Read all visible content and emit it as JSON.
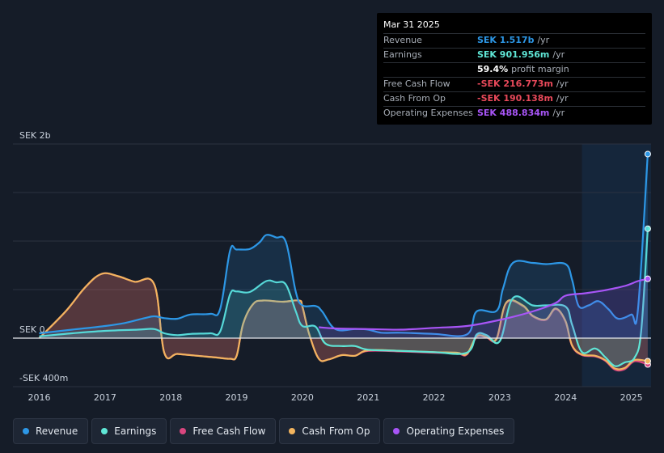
{
  "tooltip": {
    "date": "Mar 31 2025",
    "rows": [
      {
        "label": "Revenue",
        "value": "SEK 1.517b",
        "unit": "/yr",
        "color": "#2d97e6"
      },
      {
        "label": "Earnings",
        "value": "SEK 901.956m",
        "unit": "/yr",
        "color": "#5fe6d6"
      },
      {
        "label": "",
        "value": "59.4%",
        "unit": "profit margin",
        "color": "#ffffff"
      },
      {
        "label": "Free Cash Flow",
        "value": "-SEK 216.773m",
        "unit": "/yr",
        "color": "#e8495a"
      },
      {
        "label": "Cash From Op",
        "value": "-SEK 190.138m",
        "unit": "/yr",
        "color": "#e8495a"
      },
      {
        "label": "Operating Expenses",
        "value": "SEK 488.834m",
        "unit": "/yr",
        "color": "#a855f7"
      }
    ]
  },
  "legend": [
    {
      "label": "Revenue",
      "color": "#2d97e6"
    },
    {
      "label": "Earnings",
      "color": "#5fe6d6"
    },
    {
      "label": "Free Cash Flow",
      "color": "#d9467f"
    },
    {
      "label": "Cash From Op",
      "color": "#f2b45e"
    },
    {
      "label": "Operating Expenses",
      "color": "#a855f7"
    }
  ],
  "chart_data": {
    "type": "area",
    "ylim": [
      -400,
      1600
    ],
    "y_tick_labels": [
      {
        "value": 1600,
        "label": "SEK 2b"
      },
      {
        "value": 0,
        "label": "SEK 0"
      },
      {
        "value": -400,
        "label": "-SEK 400m"
      }
    ],
    "x_ticks": [
      "2016",
      "2017",
      "2018",
      "2019",
      "2020",
      "2021",
      "2022",
      "2023",
      "2024",
      "2025"
    ],
    "xlim": [
      2015.6,
      2025.3
    ],
    "highlight_from": 2024.25,
    "series": [
      {
        "name": "Revenue",
        "color": "#2d97e6",
        "points": [
          [
            2016,
            40
          ],
          [
            2016.5,
            70
          ],
          [
            2017,
            100
          ],
          [
            2017.3,
            125
          ],
          [
            2017.6,
            165
          ],
          [
            2017.75,
            180
          ],
          [
            2017.9,
            165
          ],
          [
            2018.1,
            160
          ],
          [
            2018.3,
            195
          ],
          [
            2018.6,
            200
          ],
          [
            2018.75,
            240
          ],
          [
            2018.9,
            720
          ],
          [
            2019.0,
            730
          ],
          [
            2019.2,
            735
          ],
          [
            2019.35,
            790
          ],
          [
            2019.45,
            850
          ],
          [
            2019.6,
            830
          ],
          [
            2019.75,
            790
          ],
          [
            2019.9,
            380
          ],
          [
            2020.0,
            270
          ],
          [
            2020.2,
            265
          ],
          [
            2020.3,
            220
          ],
          [
            2020.5,
            75
          ],
          [
            2020.8,
            75
          ],
          [
            2021.0,
            70
          ],
          [
            2021.2,
            45
          ],
          [
            2021.5,
            45
          ],
          [
            2022.0,
            35
          ],
          [
            2022.5,
            30
          ],
          [
            2022.65,
            220
          ],
          [
            2022.95,
            225
          ],
          [
            2023.05,
            410
          ],
          [
            2023.2,
            620
          ],
          [
            2023.5,
            620
          ],
          [
            2023.7,
            610
          ],
          [
            2024.0,
            610
          ],
          [
            2024.1,
            480
          ],
          [
            2024.2,
            265
          ],
          [
            2024.35,
            270
          ],
          [
            2024.5,
            305
          ],
          [
            2024.65,
            240
          ],
          [
            2024.8,
            160
          ],
          [
            2025.0,
            195
          ],
          [
            2025.1,
            230
          ],
          [
            2025.25,
            1517
          ]
        ]
      },
      {
        "name": "Earnings",
        "color": "#5fe6d6",
        "points": [
          [
            2016,
            15
          ],
          [
            2016.5,
            40
          ],
          [
            2017,
            60
          ],
          [
            2017.5,
            70
          ],
          [
            2017.75,
            75
          ],
          [
            2017.9,
            40
          ],
          [
            2018.1,
            25
          ],
          [
            2018.3,
            35
          ],
          [
            2018.6,
            40
          ],
          [
            2018.75,
            55
          ],
          [
            2018.9,
            360
          ],
          [
            2019.0,
            385
          ],
          [
            2019.2,
            380
          ],
          [
            2019.45,
            470
          ],
          [
            2019.6,
            460
          ],
          [
            2019.75,
            440
          ],
          [
            2019.9,
            220
          ],
          [
            2020.0,
            100
          ],
          [
            2020.2,
            95
          ],
          [
            2020.35,
            -45
          ],
          [
            2020.6,
            -65
          ],
          [
            2020.8,
            -65
          ],
          [
            2021.0,
            -95
          ],
          [
            2021.5,
            -105
          ],
          [
            2022.0,
            -115
          ],
          [
            2022.5,
            -120
          ],
          [
            2022.65,
            30
          ],
          [
            2022.8,
            25
          ],
          [
            2023.0,
            -25
          ],
          [
            2023.2,
            330
          ],
          [
            2023.5,
            270
          ],
          [
            2023.7,
            270
          ],
          [
            2024.0,
            260
          ],
          [
            2024.1,
            110
          ],
          [
            2024.25,
            -115
          ],
          [
            2024.45,
            -85
          ],
          [
            2024.6,
            -155
          ],
          [
            2024.75,
            -230
          ],
          [
            2024.9,
            -200
          ],
          [
            2025.05,
            -160
          ],
          [
            2025.15,
            60
          ],
          [
            2025.25,
            902
          ]
        ]
      },
      {
        "name": "Free Cash Flow",
        "color": "#d9467f",
        "points": [
          [
            2016,
            0
          ],
          [
            2016.4,
            220
          ],
          [
            2016.7,
            420
          ],
          [
            2016.95,
            530
          ],
          [
            2017.2,
            510
          ],
          [
            2017.45,
            465
          ],
          [
            2017.75,
            440
          ],
          [
            2017.9,
            -120
          ],
          [
            2018.1,
            -130
          ],
          [
            2018.4,
            -145
          ],
          [
            2018.7,
            -160
          ],
          [
            2018.9,
            -170
          ],
          [
            2019.0,
            -145
          ],
          [
            2019.1,
            120
          ],
          [
            2019.25,
            280
          ],
          [
            2019.4,
            310
          ],
          [
            2019.7,
            300
          ],
          [
            2019.95,
            310
          ],
          [
            2020.0,
            260
          ],
          [
            2020.1,
            40
          ],
          [
            2020.25,
            -170
          ],
          [
            2020.4,
            -175
          ],
          [
            2020.6,
            -140
          ],
          [
            2020.8,
            -145
          ],
          [
            2021.0,
            -105
          ],
          [
            2021.5,
            -110
          ],
          [
            2022.0,
            -120
          ],
          [
            2022.35,
            -125
          ],
          [
            2022.5,
            -135
          ],
          [
            2022.65,
            10
          ],
          [
            2022.8,
            5
          ],
          [
            2022.95,
            -10
          ],
          [
            2023.1,
            290
          ],
          [
            2023.35,
            265
          ],
          [
            2023.5,
            180
          ],
          [
            2023.7,
            150
          ],
          [
            2023.85,
            240
          ],
          [
            2024.0,
            135
          ],
          [
            2024.1,
            -65
          ],
          [
            2024.25,
            -140
          ],
          [
            2024.45,
            -150
          ],
          [
            2024.6,
            -185
          ],
          [
            2024.75,
            -260
          ],
          [
            2024.9,
            -255
          ],
          [
            2025.05,
            -190
          ],
          [
            2025.25,
            -217
          ]
        ]
      },
      {
        "name": "Cash From Op",
        "color": "#f2b45e",
        "points": [
          [
            2016,
            0
          ],
          [
            2016.4,
            220
          ],
          [
            2016.7,
            420
          ],
          [
            2016.95,
            530
          ],
          [
            2017.2,
            510
          ],
          [
            2017.45,
            465
          ],
          [
            2017.75,
            440
          ],
          [
            2017.9,
            -120
          ],
          [
            2018.1,
            -130
          ],
          [
            2018.4,
            -145
          ],
          [
            2018.7,
            -160
          ],
          [
            2018.9,
            -170
          ],
          [
            2019.0,
            -145
          ],
          [
            2019.1,
            120
          ],
          [
            2019.25,
            280
          ],
          [
            2019.4,
            310
          ],
          [
            2019.7,
            300
          ],
          [
            2019.95,
            310
          ],
          [
            2020.0,
            260
          ],
          [
            2020.1,
            40
          ],
          [
            2020.25,
            -170
          ],
          [
            2020.4,
            -175
          ],
          [
            2020.6,
            -140
          ],
          [
            2020.8,
            -145
          ],
          [
            2021.0,
            -100
          ],
          [
            2021.5,
            -105
          ],
          [
            2022.0,
            -115
          ],
          [
            2022.35,
            -120
          ],
          [
            2022.5,
            -130
          ],
          [
            2022.65,
            15
          ],
          [
            2022.8,
            10
          ],
          [
            2022.95,
            -5
          ],
          [
            2023.1,
            295
          ],
          [
            2023.35,
            270
          ],
          [
            2023.5,
            185
          ],
          [
            2023.7,
            155
          ],
          [
            2023.85,
            245
          ],
          [
            2024.0,
            140
          ],
          [
            2024.1,
            -60
          ],
          [
            2024.25,
            -135
          ],
          [
            2024.45,
            -145
          ],
          [
            2024.6,
            -180
          ],
          [
            2024.75,
            -250
          ],
          [
            2024.9,
            -245
          ],
          [
            2025.05,
            -180
          ],
          [
            2025.25,
            -190
          ]
        ]
      },
      {
        "name": "Operating Expenses",
        "color": "#a855f7",
        "points": [
          [
            2020.25,
            90
          ],
          [
            2020.5,
            80
          ],
          [
            2021.0,
            75
          ],
          [
            2021.5,
            70
          ],
          [
            2022.0,
            85
          ],
          [
            2022.5,
            100
          ],
          [
            2023.0,
            150
          ],
          [
            2023.5,
            220
          ],
          [
            2023.85,
            290
          ],
          [
            2024.0,
            350
          ],
          [
            2024.3,
            370
          ],
          [
            2024.6,
            395
          ],
          [
            2024.9,
            430
          ],
          [
            2025.1,
            470
          ],
          [
            2025.25,
            489
          ]
        ]
      }
    ]
  }
}
